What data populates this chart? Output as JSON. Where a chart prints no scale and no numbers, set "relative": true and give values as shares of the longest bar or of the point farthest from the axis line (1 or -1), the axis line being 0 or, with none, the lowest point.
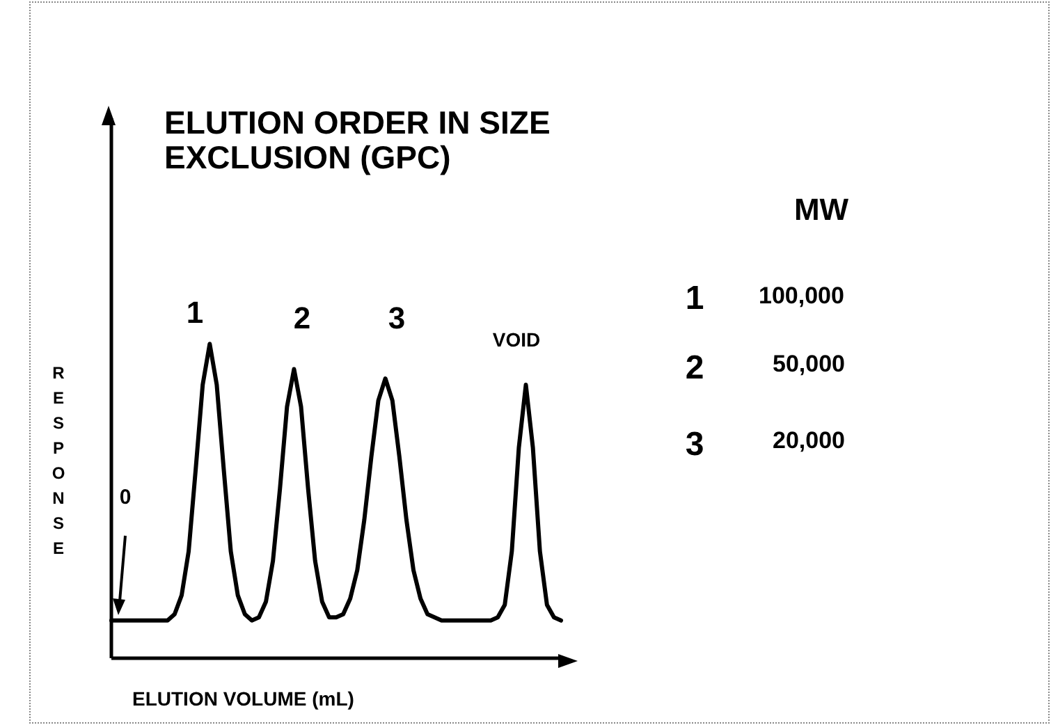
{
  "chart_data": {
    "type": "line",
    "title": "ELUTION ORDER IN SIZE EXCLUSION (GPC)",
    "xlabel": "ELUTION VOLUME (mL)",
    "ylabel": "RESPONSE",
    "relative": true,
    "marker": "none",
    "line_style": "solid",
    "grid": false,
    "legend": false,
    "categories": [
      null,
      null,
      null,
      null,
      null,
      null,
      null,
      null,
      null,
      null,
      null,
      null,
      null,
      null,
      null,
      null,
      null,
      null,
      null,
      null,
      null,
      null,
      null,
      null,
      null,
      null,
      null,
      null,
      null,
      null,
      null,
      null,
      null,
      null,
      null,
      null,
      null,
      null,
      null,
      null,
      null,
      null,
      null,
      null,
      null,
      null,
      null,
      null,
      null,
      null,
      null,
      null,
      null,
      null,
      null,
      null,
      null,
      null,
      null,
      null,
      null,
      null,
      null,
      null,
      null
    ],
    "series": [
      {
        "color": "#000000",
        "values": [
          0.12,
          0.12,
          0.12,
          0.12,
          0.12,
          0.12,
          0.12,
          0.12,
          0.12,
          0.14,
          0.2,
          0.34,
          0.6,
          0.87,
          1,
          0.87,
          0.6,
          0.34,
          0.2,
          0.14,
          0.12,
          0.13,
          0.18,
          0.31,
          0.54,
          0.8,
          0.92,
          0.8,
          0.54,
          0.31,
          0.18,
          0.13,
          0.13,
          0.14,
          0.19,
          0.28,
          0.44,
          0.64,
          0.82,
          0.89,
          0.82,
          0.64,
          0.44,
          0.28,
          0.19,
          0.14,
          0.13,
          0.12,
          0.12,
          0.12,
          0.12,
          0.12,
          0.12,
          0.12,
          0.12,
          0.13,
          0.17,
          0.34,
          0.67,
          0.87,
          0.67,
          0.34,
          0.17,
          0.13,
          0.12
        ]
      }
    ],
    "annotations": [
      "1",
      "2",
      "3",
      "VOID",
      "0",
      "MW",
      "1",
      "100,000",
      "2",
      "50,000",
      "3",
      "20,000"
    ]
  }
}
